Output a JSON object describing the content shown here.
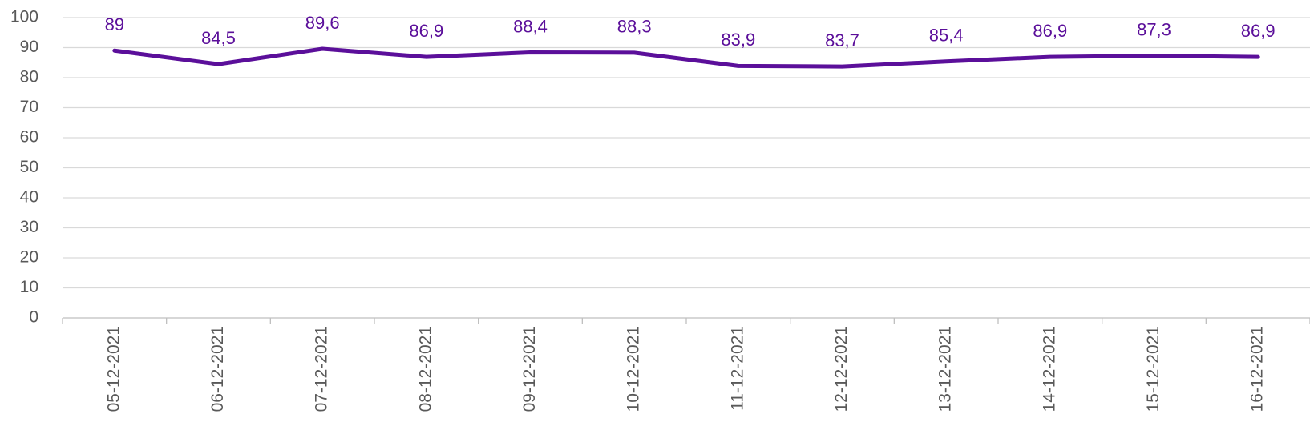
{
  "chart_data": {
    "type": "line",
    "categories": [
      "05-12-2021",
      "06-12-2021",
      "07-12-2021",
      "08-12-2021",
      "09-12-2021",
      "10-12-2021",
      "11-12-2021",
      "12-12-2021",
      "13-12-2021",
      "14-12-2021",
      "15-12-2021",
      "16-12-2021"
    ],
    "values": [
      89,
      84.5,
      89.6,
      86.9,
      88.4,
      88.3,
      83.9,
      83.7,
      85.4,
      86.9,
      87.3,
      86.9
    ],
    "value_labels": [
      "89",
      "84,5",
      "89,6",
      "86,9",
      "88,4",
      "88,3",
      "83,9",
      "83,7",
      "85,4",
      "86,9",
      "87,3",
      "86,9"
    ],
    "color": "#5b0f9a",
    "ylim": [
      0,
      100
    ],
    "yticks": [
      0,
      10,
      20,
      30,
      40,
      50,
      60,
      70,
      80,
      90,
      100
    ],
    "grid": true
  }
}
